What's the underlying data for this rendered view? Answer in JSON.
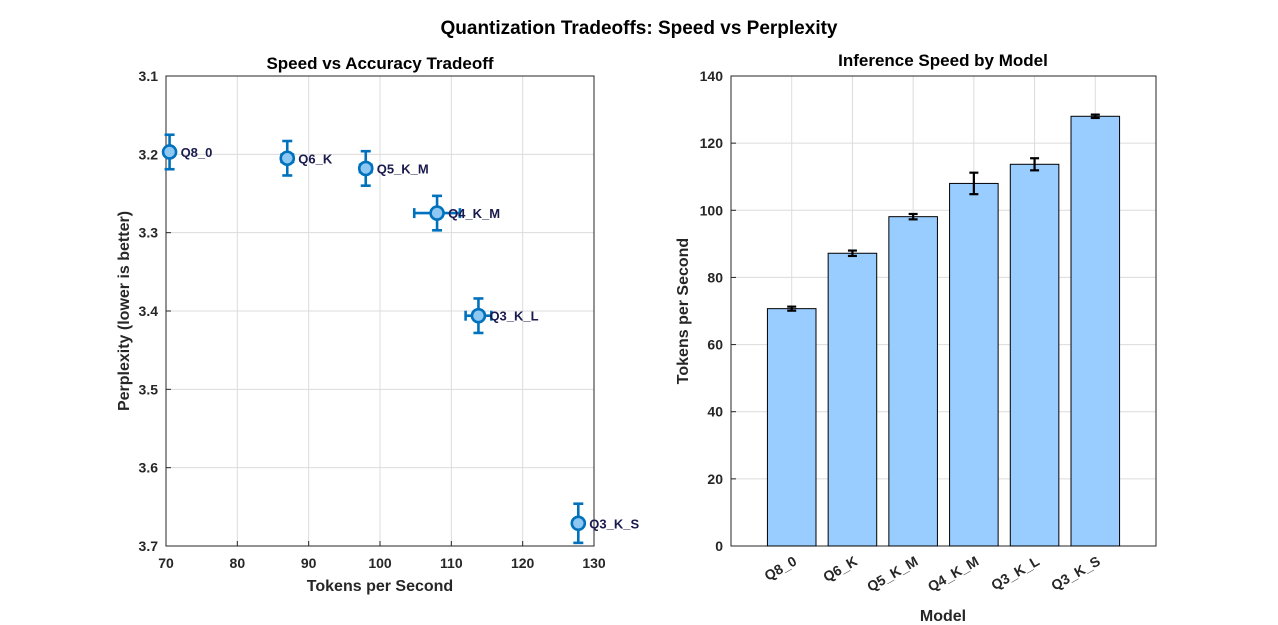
{
  "figure": {
    "title": "Quantization Tradeoffs: Speed vs Perplexity"
  },
  "colors": {
    "marker_edge": "#0072BD",
    "marker_fill": "#8EC8F2",
    "bar_fill": "#99CCFF",
    "bar_edge": "#000000",
    "label_text": "#1A1A4D"
  },
  "chart_data": [
    {
      "type": "scatter",
      "title": "Speed vs Accuracy Tradeoff",
      "xlabel": "Tokens per Second",
      "ylabel": "Perplexity (lower is better)",
      "xlim": [
        70,
        130
      ],
      "ylim": [
        3.1,
        3.7
      ],
      "y_reversed": true,
      "grid": true,
      "xticks": [
        "70",
        "80",
        "90",
        "100",
        "110",
        "120",
        "130"
      ],
      "yticks": [
        "3.1",
        "3.2",
        "3.3",
        "3.4",
        "3.5",
        "3.6",
        "3.7"
      ],
      "points": [
        {
          "label": "Q8_0",
          "x": 70.5,
          "y": 3.197,
          "x_err": 0.6,
          "y_err": 0.022
        },
        {
          "label": "Q6_K",
          "x": 87.0,
          "y": 3.205,
          "x_err": 0.8,
          "y_err": 0.022
        },
        {
          "label": "Q5_K_M",
          "x": 98.0,
          "y": 3.218,
          "x_err": 0.8,
          "y_err": 0.022
        },
        {
          "label": "Q4_K_M",
          "x": 108.0,
          "y": 3.275,
          "x_err": 3.2,
          "y_err": 0.022
        },
        {
          "label": "Q3_K_L",
          "x": 113.8,
          "y": 3.406,
          "x_err": 1.8,
          "y_err": 0.022
        },
        {
          "label": "Q3_K_S",
          "x": 127.8,
          "y": 3.671,
          "x_err": 0.5,
          "y_err": 0.025
        }
      ]
    },
    {
      "type": "bar",
      "title": "Inference Speed by Model",
      "xlabel": "Model",
      "ylabel": "Tokens per Second",
      "ylim": [
        0,
        140
      ],
      "grid": true,
      "yticks": [
        "0",
        "20",
        "40",
        "60",
        "80",
        "100",
        "120",
        "140"
      ],
      "categories": [
        "Q8_0",
        "Q6_K",
        "Q5_K_M",
        "Q4_K_M",
        "Q3_K_L",
        "Q3_K_S"
      ],
      "values": [
        70.7,
        87.2,
        98.1,
        108.0,
        113.7,
        128.0
      ],
      "errors": [
        0.6,
        0.8,
        0.8,
        3.2,
        1.8,
        0.5
      ]
    }
  ]
}
